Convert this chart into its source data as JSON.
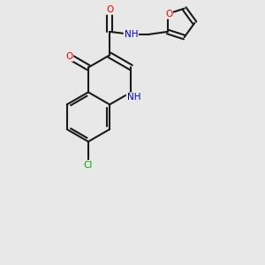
{
  "background_color": "#e8e8e8",
  "bond_color": "#1a1a1a",
  "atom_colors": {
    "O": "#ff0000",
    "N": "#0000cc",
    "Cl": "#00aa00",
    "C": "#1a1a1a"
  },
  "figsize": [
    3.0,
    3.0
  ],
  "dpi": 100
}
